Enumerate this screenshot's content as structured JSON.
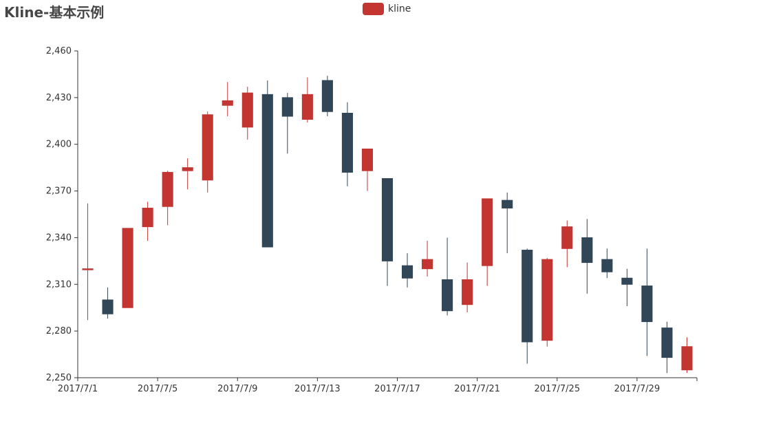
{
  "title": "Kline-基本示例",
  "legend": {
    "label": "kline"
  },
  "colors": {
    "up": "#c23531",
    "down": "#314656",
    "axis": "#333333"
  },
  "chart_data": {
    "type": "candlestick",
    "series_name": "kline",
    "legend_position": "top-center",
    "grid": false,
    "ylim": [
      2250,
      2460
    ],
    "y_ticks": [
      2250,
      2280,
      2310,
      2340,
      2370,
      2400,
      2430,
      2460
    ],
    "y_tick_labels": [
      "2,250",
      "2,280",
      "2,310",
      "2,340",
      "2,370",
      "2,400",
      "2,430",
      "2,460"
    ],
    "x_tick_labels": [
      "2017/7/1",
      "2017/7/5",
      "2017/7/9",
      "2017/7/13",
      "2017/7/17",
      "2017/7/21",
      "2017/7/25",
      "2017/7/29"
    ],
    "categories": [
      "2017/7/1",
      "2017/7/2",
      "2017/7/3",
      "2017/7/4",
      "2017/7/5",
      "2017/7/6",
      "2017/7/7",
      "2017/7/8",
      "2017/7/9",
      "2017/7/10",
      "2017/7/11",
      "2017/7/12",
      "2017/7/13",
      "2017/7/14",
      "2017/7/15",
      "2017/7/16",
      "2017/7/17",
      "2017/7/18",
      "2017/7/19",
      "2017/7/20",
      "2017/7/21",
      "2017/7/22",
      "2017/7/23",
      "2017/7/24",
      "2017/7/25",
      "2017/7/26",
      "2017/7/27",
      "2017/7/28",
      "2017/7/29",
      "2017/7/30",
      "2017/7/31"
    ],
    "ohlc": [
      {
        "open": 2320,
        "close": 2320,
        "low": 2287,
        "high": 2362
      },
      {
        "open": 2300,
        "close": 2291,
        "low": 2288,
        "high": 2308
      },
      {
        "open": 2295,
        "close": 2346,
        "low": 2295,
        "high": 2346
      },
      {
        "open": 2347,
        "close": 2359,
        "low": 2338,
        "high": 2363
      },
      {
        "open": 2360,
        "close": 2382,
        "low": 2348,
        "high": 2383
      },
      {
        "open": 2383,
        "close": 2385,
        "low": 2371,
        "high": 2391
      },
      {
        "open": 2377,
        "close": 2419,
        "low": 2369,
        "high": 2421
      },
      {
        "open": 2425,
        "close": 2428,
        "low": 2418,
        "high": 2440
      },
      {
        "open": 2411,
        "close": 2433,
        "low": 2403,
        "high": 2437
      },
      {
        "open": 2432,
        "close": 2334,
        "low": 2334,
        "high": 2441
      },
      {
        "open": 2430,
        "close": 2418,
        "low": 2394,
        "high": 2433
      },
      {
        "open": 2416,
        "close": 2432,
        "low": 2414,
        "high": 2443
      },
      {
        "open": 2441,
        "close": 2421,
        "low": 2418,
        "high": 2444
      },
      {
        "open": 2420,
        "close": 2382,
        "low": 2373,
        "high": 2427
      },
      {
        "open": 2383,
        "close": 2397,
        "low": 2370,
        "high": 2397
      },
      {
        "open": 2378,
        "close": 2325,
        "low": 2309,
        "high": 2378
      },
      {
        "open": 2322,
        "close": 2314,
        "low": 2308,
        "high": 2330
      },
      {
        "open": 2320,
        "close": 2326,
        "low": 2315,
        "high": 2338
      },
      {
        "open": 2313,
        "close": 2293,
        "low": 2290,
        "high": 2340
      },
      {
        "open": 2297,
        "close": 2313,
        "low": 2292,
        "high": 2324
      },
      {
        "open": 2322,
        "close": 2365,
        "low": 2309,
        "high": 2365
      },
      {
        "open": 2364,
        "close": 2359,
        "low": 2330,
        "high": 2369
      },
      {
        "open": 2332,
        "close": 2273,
        "low": 2259,
        "high": 2333
      },
      {
        "open": 2274,
        "close": 2326,
        "low": 2270,
        "high": 2327
      },
      {
        "open": 2333,
        "close": 2347,
        "low": 2321,
        "high": 2351
      },
      {
        "open": 2340,
        "close": 2324,
        "low": 2304,
        "high": 2352
      },
      {
        "open": 2326,
        "close": 2318,
        "low": 2314,
        "high": 2333
      },
      {
        "open": 2314,
        "close": 2310,
        "low": 2296,
        "high": 2320
      },
      {
        "open": 2309,
        "close": 2286,
        "low": 2264,
        "high": 2333
      },
      {
        "open": 2282,
        "close": 2263,
        "low": 2253,
        "high": 2286
      },
      {
        "open": 2255,
        "close": 2270,
        "low": 2253,
        "high": 2276
      }
    ]
  }
}
